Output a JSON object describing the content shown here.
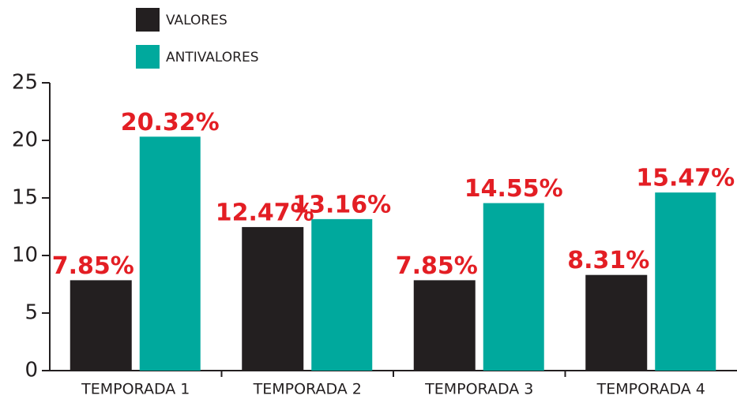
{
  "chart_data": {
    "type": "bar",
    "categories": [
      "TEMPORADA 1",
      "TEMPORADA 2",
      "TEMPORADA 3",
      "TEMPORADA 4"
    ],
    "series": [
      {
        "name": "VALORES",
        "color": "#231f20",
        "values": [
          7.85,
          12.47,
          7.85,
          8.31
        ],
        "value_labels": [
          "7.85%",
          "12.47%",
          "7.85%",
          "8.31%"
        ]
      },
      {
        "name": "ANTIVALORES",
        "color": "#00a99d",
        "values": [
          20.32,
          13.16,
          14.55,
          15.47
        ],
        "value_labels": [
          "20.32%",
          "13.16%",
          "14.55%",
          "15.47%"
        ]
      }
    ],
    "value_label_color": "#e31e24",
    "ylim": [
      0,
      25
    ],
    "yticks": [
      0,
      5,
      10,
      15,
      20,
      25
    ]
  }
}
